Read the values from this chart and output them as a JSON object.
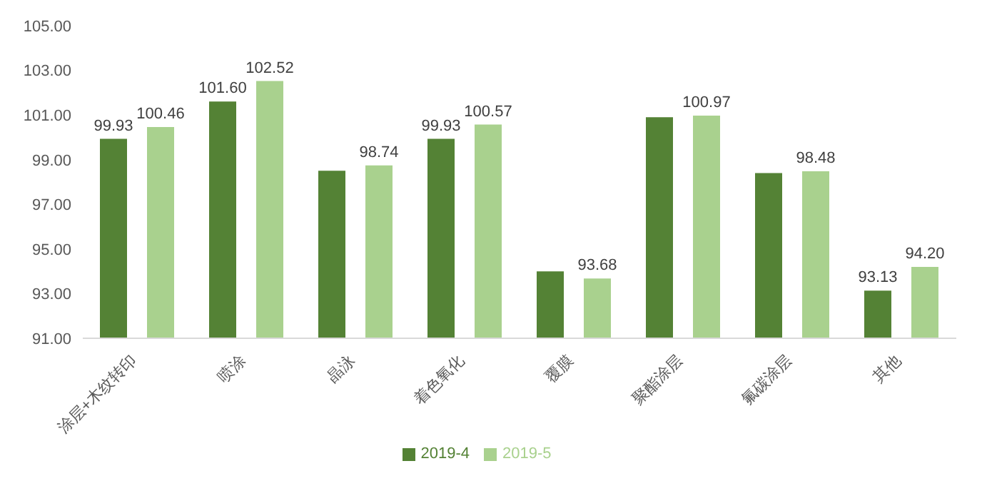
{
  "chart_data": {
    "type": "bar",
    "categories": [
      "涂层+木纹转印",
      "喷涂",
      "晶泳",
      "着色氧化",
      "覆膜",
      "聚酯涂层",
      "氟碳涂层",
      "其他"
    ],
    "series": [
      {
        "name": "2019-4",
        "color": "#548235",
        "values": [
          99.93,
          101.6,
          98.5,
          99.93,
          94.0,
          100.9,
          98.4,
          93.13
        ],
        "value_labels": [
          "99.93",
          "101.60",
          null,
          "99.93",
          null,
          null,
          null,
          "93.13"
        ]
      },
      {
        "name": "2019-5",
        "color": "#a9d18e",
        "values": [
          100.46,
          102.52,
          98.74,
          100.57,
          93.68,
          100.97,
          98.48,
          94.2
        ],
        "value_labels": [
          "100.46",
          "102.52",
          "98.74",
          "100.57",
          "93.68",
          "100.97",
          "98.48",
          "94.20"
        ]
      }
    ],
    "ylim": [
      91,
      105
    ],
    "yticks": [
      {
        "value": 91,
        "label": "91.00"
      },
      {
        "value": 93,
        "label": "93.00"
      },
      {
        "value": 95,
        "label": "95.00"
      },
      {
        "value": 97,
        "label": "97.00"
      },
      {
        "value": 99,
        "label": "99.00"
      },
      {
        "value": 101,
        "label": "101.00"
      },
      {
        "value": 103,
        "label": "103.00"
      },
      {
        "value": 105,
        "label": "105.00"
      }
    ],
    "grid": false,
    "legend": "bottom"
  }
}
